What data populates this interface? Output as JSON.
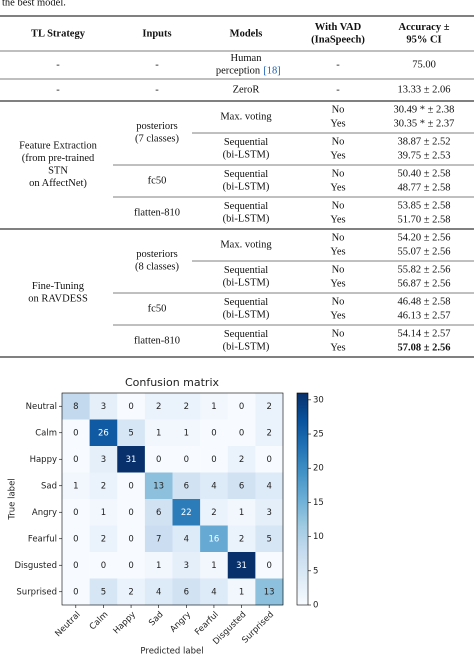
{
  "caption_fragment": "the best model.",
  "table": {
    "header": [
      [
        "TL Strategy"
      ],
      [
        "Inputs"
      ],
      [
        "Models"
      ],
      [
        "With VAD",
        "(InaSpeech)"
      ],
      [
        "Accuracy ±",
        "95% CI"
      ]
    ],
    "baseline": [
      {
        "strategy": "-",
        "inputs": "-",
        "model": [
          "Human",
          "perception"
        ],
        "cite": "[18]",
        "vad": "-",
        "accuracy": "75.00"
      },
      {
        "strategy": "-",
        "inputs": "-",
        "model": [
          "ZeroR"
        ],
        "vad": "-",
        "accuracy": "13.33 ± 2.06"
      }
    ],
    "groups": [
      {
        "strategy": [
          "Feature Extraction",
          "(from pre-trained",
          "STN",
          "on AffectNet)"
        ],
        "inputs": [
          {
            "name": [
              "posteriors",
              "(7 classes)"
            ],
            "models": [
              {
                "model": [
                  "Max. voting"
                ],
                "rows": [
                  {
                    "vad": "No",
                    "accuracy": "30.49 * ± 2.38"
                  },
                  {
                    "vad": "Yes",
                    "accuracy": "30.35 * ± 2.37"
                  }
                ]
              },
              {
                "model": [
                  "Sequential",
                  "(bi-LSTM)"
                ],
                "rows": [
                  {
                    "vad": "No",
                    "accuracy": "38.87 ± 2.52"
                  },
                  {
                    "vad": "Yes",
                    "accuracy": "39.75 ± 2.53"
                  }
                ]
              }
            ]
          },
          {
            "name": [
              "fc50"
            ],
            "models": [
              {
                "model": [
                  "Sequential",
                  "(bi-LSTM)"
                ],
                "rows": [
                  {
                    "vad": "No",
                    "accuracy": "50.40 ± 2.58"
                  },
                  {
                    "vad": "Yes",
                    "accuracy": "48.77 ± 2.58"
                  }
                ]
              }
            ]
          },
          {
            "name": [
              "flatten-810"
            ],
            "models": [
              {
                "model": [
                  "Sequential",
                  "(bi-LSTM)"
                ],
                "rows": [
                  {
                    "vad": "No",
                    "accuracy": "53.85 ± 2.58"
                  },
                  {
                    "vad": "Yes",
                    "accuracy": "51.70 ± 2.58"
                  }
                ]
              }
            ]
          }
        ]
      },
      {
        "strategy": [
          "Fine-Tuning",
          "on RAVDESS"
        ],
        "inputs": [
          {
            "name": [
              "posteriors",
              "(8 classes)"
            ],
            "models": [
              {
                "model": [
                  "Max. voting"
                ],
                "rows": [
                  {
                    "vad": "No",
                    "accuracy": "54.20 ± 2.56"
                  },
                  {
                    "vad": "Yes",
                    "accuracy": "55.07 ± 2.56"
                  }
                ]
              },
              {
                "model": [
                  "Sequential",
                  "(bi-LSTM)"
                ],
                "rows": [
                  {
                    "vad": "No",
                    "accuracy": "55.82 ± 2.56"
                  },
                  {
                    "vad": "Yes",
                    "accuracy": "56.87 ± 2.56"
                  }
                ]
              }
            ]
          },
          {
            "name": [
              "fc50"
            ],
            "models": [
              {
                "model": [
                  "Sequential",
                  "(bi-LSTM)"
                ],
                "rows": [
                  {
                    "vad": "No",
                    "accuracy": "46.48 ± 2.58"
                  },
                  {
                    "vad": "Yes",
                    "accuracy": "46.13 ± 2.57"
                  }
                ]
              }
            ]
          },
          {
            "name": [
              "flatten-810"
            ],
            "models": [
              {
                "model": [
                  "Sequential",
                  "(bi-LSTM)"
                ],
                "rows": [
                  {
                    "vad": "No",
                    "accuracy": "54.14 ± 2.57"
                  },
                  {
                    "vad": "Yes",
                    "accuracy": "57.08 ± 2.56",
                    "bold": true
                  }
                ]
              }
            ]
          }
        ]
      }
    ]
  },
  "chart_data": {
    "type": "heatmap",
    "title": "Confusion matrix",
    "x_label": "Predicted label",
    "y_label": "True label",
    "x_categories": [
      "Neutral",
      "Calm",
      "Happy",
      "Sad",
      "Angry",
      "Fearful",
      "Disgusted",
      "Surprised"
    ],
    "y_categories": [
      "Neutral",
      "Calm",
      "Happy",
      "Sad",
      "Angry",
      "Fearful",
      "Disgusted",
      "Surprised"
    ],
    "values": [
      [
        8,
        3,
        0,
        2,
        2,
        1,
        0,
        2
      ],
      [
        0,
        26,
        5,
        1,
        1,
        0,
        0,
        2
      ],
      [
        0,
        3,
        31,
        0,
        0,
        0,
        2,
        0
      ],
      [
        1,
        2,
        0,
        13,
        6,
        4,
        6,
        4
      ],
      [
        0,
        1,
        0,
        6,
        22,
        2,
        1,
        3
      ],
      [
        0,
        2,
        0,
        7,
        4,
        16,
        2,
        5
      ],
      [
        0,
        0,
        0,
        1,
        3,
        1,
        31,
        0
      ],
      [
        0,
        5,
        2,
        4,
        6,
        4,
        1,
        13
      ]
    ],
    "colormap": "Blues",
    "clim": [
      0,
      31
    ],
    "cticks": [
      0,
      5,
      10,
      15,
      20,
      25,
      30
    ]
  }
}
